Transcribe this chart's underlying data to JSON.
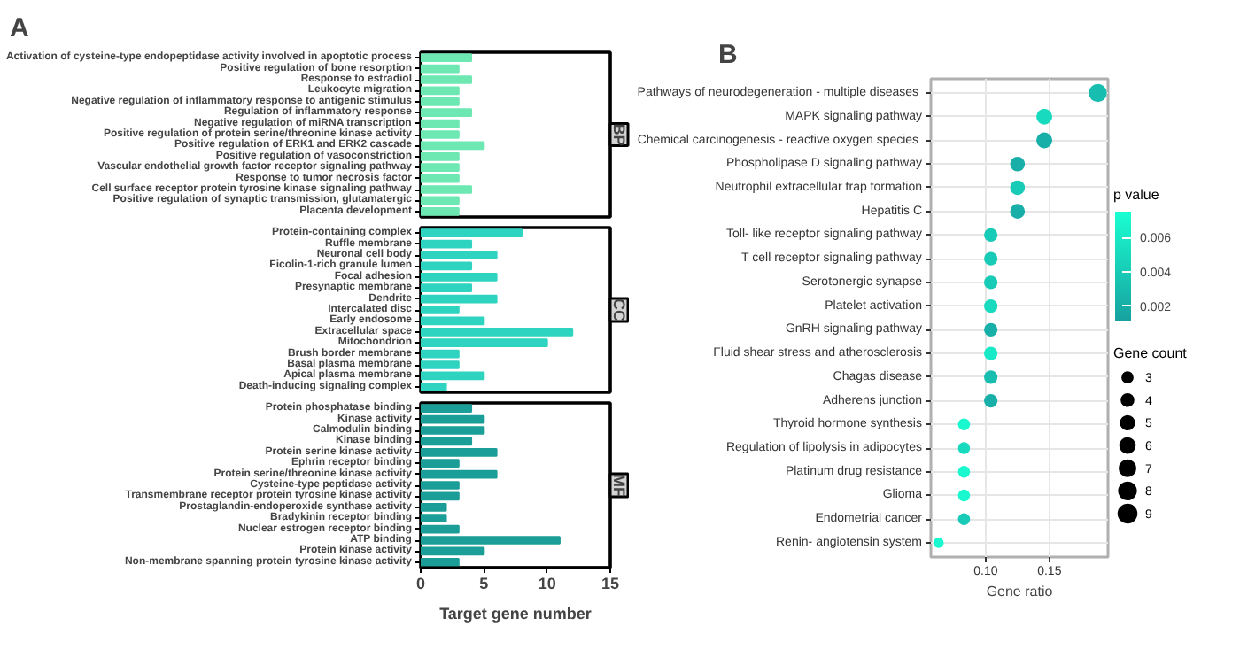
{
  "chart_data": [
    {
      "type": "bar",
      "orientation": "horizontal",
      "title": "BP",
      "annotations": [
        "A"
      ],
      "tick_labels": "y",
      "grid": false,
      "color": "#6ee8b2",
      "xlim": [
        0,
        15
      ],
      "xticks": [
        0,
        5,
        10,
        15
      ],
      "categories": [
        "Activation of cysteine-type endopeptidase activity involved in apoptotic process",
        "Positive regulation of bone resorption",
        "Response to estradiol",
        "Leukocyte migration",
        "Negative regulation of inflammatory response to antigenic stimulus",
        "Regulation of inflammatory response",
        "Negative regulation of miRNA transcription",
        "Positive regulation of protein serine/threonine kinase activity",
        "Positive regulation of ERK1 and ERK2 cascade",
        "Positive regulation of vasoconstriction",
        "Vascular endothelial growth factor receptor signaling pathway",
        "Response to tumor necrosis factor",
        "Cell surface receptor protein tyrosine kinase signaling pathway",
        "Positive regulation of synaptic transmission, glutamatergic",
        "Placenta development"
      ],
      "values": [
        4,
        3,
        4,
        3,
        3,
        4,
        3,
        3,
        5,
        3,
        3,
        3,
        4,
        3,
        3
      ]
    },
    {
      "type": "bar",
      "orientation": "horizontal",
      "title": "CC",
      "tick_labels": "y",
      "grid": false,
      "color": "#2ed4c0",
      "xlim": [
        0,
        15
      ],
      "xticks": [
        0,
        5,
        10,
        15
      ],
      "categories": [
        "Protein-containing complex",
        "Ruffle membrane",
        "Neuronal cell body",
        "Ficolin-1-rich granule lumen",
        "Focal adhesion",
        "Presynaptic membrane",
        "Dendrite",
        "Intercalated disc",
        "Early endosome",
        "Extracellular space",
        "Mitochondrion",
        "Brush border membrane",
        "Basal plasma membrane",
        "Apical plasma membrane",
        "Death-inducing signaling complex"
      ],
      "values": [
        8,
        4,
        6,
        4,
        6,
        4,
        6,
        3,
        5,
        12,
        10,
        3,
        3,
        5,
        2
      ]
    },
    {
      "type": "bar",
      "orientation": "horizontal",
      "title": "MF",
      "xlabel": "Target gene number",
      "grid": false,
      "color": "#1b9e98",
      "xlim": [
        0,
        15
      ],
      "xticks": [
        0,
        5,
        10,
        15
      ],
      "categories": [
        "Protein phosphatase binding",
        "Kinase activity",
        "Calmodulin binding",
        "Kinase binding",
        "Protein serine kinase activity",
        "Ephrin receptor binding",
        "Protein serine/threonine kinase activity",
        "Cysteine-type peptidase activity",
        "Transmembrane receptor protein tyrosine kinase activity",
        "Prostaglandin-endoperoxide synthase activity",
        "Bradykinin receptor binding",
        "Nuclear estrogen receptor binding",
        "ATP binding",
        "Protein kinase activity",
        "Non-membrane spanning protein tyrosine kinase activity"
      ],
      "values": [
        4,
        5,
        5,
        4,
        6,
        3,
        6,
        3,
        3,
        2,
        2,
        3,
        11,
        5,
        3
      ]
    },
    {
      "type": "bubble",
      "orientation": "horizontal",
      "annotations": [
        "B"
      ],
      "xlabel": "Gene ratio",
      "clabel": "p value",
      "legend_title": "Gene count",
      "grid": true,
      "xlim": [
        0.057,
        0.196
      ],
      "xticks": [
        {
          "value": 0.1,
          "label": "0.10"
        },
        0.15
      ],
      "clim": [
        0.0011,
        0.0075
      ],
      "cticks": [
        0.002,
        0.004,
        0.006
      ],
      "size_legend": [
        3,
        4,
        5,
        6,
        7,
        8,
        9
      ],
      "categories": [
        "Pathways of neurodegeneration -  multiple diseases",
        "MAPK signaling pathway",
        "Chemical carcinogenesis -  reactive oxygen species",
        "Phospholipase D signaling pathway",
        "Neutrophil extracellular trap formation",
        "Hepatitis C",
        "Toll- like receptor signaling pathway",
        "T cell receptor signaling pathway",
        "Serotonergic synapse",
        "Platelet activation",
        "GnRH signaling pathway",
        "Fluid shear stress and atherosclerosis",
        "Chagas disease",
        "Adherens junction",
        "Thyroid hormone synthesis",
        "Regulation of lipolysis in adipocytes",
        "Platinum drug resistance",
        "Glioma",
        "Endometrial cancer",
        "Renin- angiotensin system"
      ],
      "values": [
        0.188,
        0.146,
        0.146,
        0.125,
        0.125,
        0.125,
        0.104,
        0.104,
        0.104,
        0.104,
        0.104,
        0.104,
        0.104,
        0.104,
        0.083,
        0.083,
        0.083,
        0.083,
        0.083,
        0.063
      ],
      "sizes": [
        9,
        7,
        7,
        6,
        6,
        6,
        5,
        5,
        5,
        5,
        5,
        5,
        5,
        5,
        4,
        4,
        4,
        4,
        4,
        3
      ],
      "cvalues": [
        0.003,
        0.005,
        0.002,
        0.002,
        0.004,
        0.002,
        0.004,
        0.004,
        0.004,
        0.005,
        0.002,
        0.006,
        0.003,
        0.002,
        0.007,
        0.005,
        0.007,
        0.007,
        0.004,
        0.007
      ]
    }
  ]
}
